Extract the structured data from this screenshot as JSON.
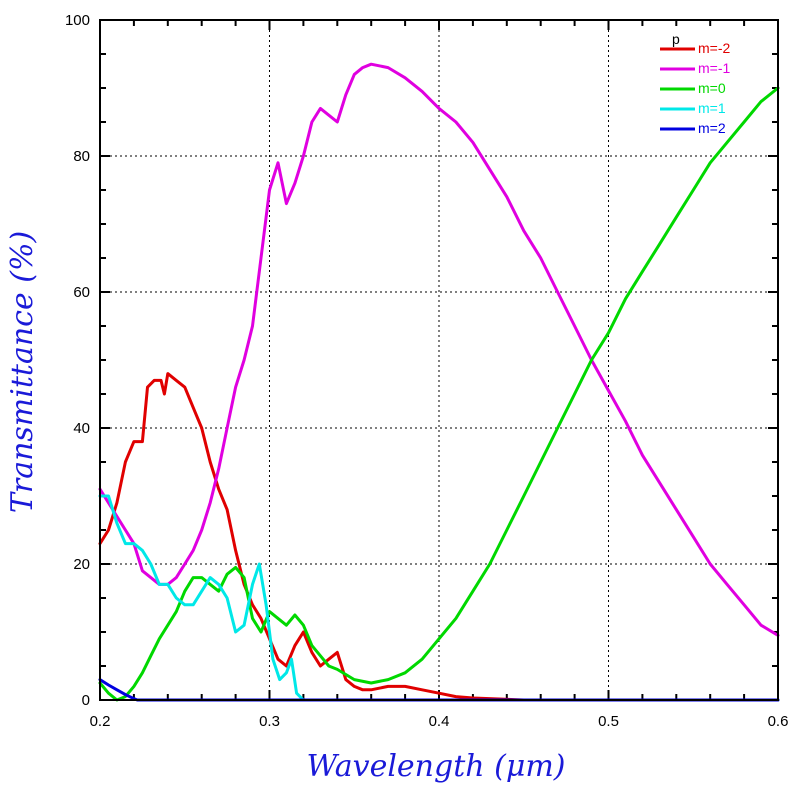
{
  "chart_data": {
    "type": "line",
    "xlabel": "Wavelength (μm)",
    "ylabel": "Transmittance (%)",
    "xlim": [
      0.2,
      0.6
    ],
    "ylim": [
      0,
      100
    ],
    "xticks": [
      0.2,
      0.3,
      0.4,
      0.5,
      0.6
    ],
    "xtick_labels": [
      "0.2",
      "0.3",
      "0.4",
      "0.5",
      "0.6"
    ],
    "yticks": [
      0,
      20,
      40,
      60,
      80,
      100
    ],
    "ytick_labels": [
      "0",
      "20",
      "40",
      "60",
      "80",
      "100"
    ],
    "grid": true,
    "legend_position": "top-right",
    "legend_heading": "p",
    "series": [
      {
        "name": "m=-2",
        "color": "#e00000",
        "x": [
          0.2,
          0.205,
          0.21,
          0.215,
          0.22,
          0.225,
          0.228,
          0.232,
          0.236,
          0.238,
          0.24,
          0.245,
          0.25,
          0.255,
          0.26,
          0.265,
          0.27,
          0.275,
          0.28,
          0.285,
          0.29,
          0.295,
          0.3,
          0.305,
          0.31,
          0.315,
          0.32,
          0.325,
          0.33,
          0.335,
          0.34,
          0.345,
          0.35,
          0.355,
          0.36,
          0.37,
          0.38,
          0.39,
          0.4,
          0.41,
          0.42,
          0.45,
          0.5,
          0.55,
          0.6
        ],
        "y": [
          23,
          25,
          29,
          35,
          38,
          38,
          46,
          47,
          47,
          45,
          48,
          47,
          46,
          43,
          40,
          35,
          31,
          28,
          22,
          17,
          14,
          12,
          9,
          6,
          5,
          8,
          10,
          7,
          5,
          6,
          7,
          3,
          2,
          1.5,
          1.5,
          2,
          2,
          1.5,
          1,
          0.5,
          0.3,
          0,
          0,
          0,
          0
        ]
      },
      {
        "name": "m=-1",
        "color": "#e000e0",
        "x": [
          0.2,
          0.205,
          0.21,
          0.215,
          0.22,
          0.225,
          0.23,
          0.235,
          0.24,
          0.245,
          0.25,
          0.255,
          0.26,
          0.265,
          0.27,
          0.275,
          0.28,
          0.285,
          0.29,
          0.295,
          0.3,
          0.305,
          0.31,
          0.315,
          0.32,
          0.325,
          0.33,
          0.335,
          0.34,
          0.345,
          0.35,
          0.355,
          0.36,
          0.37,
          0.38,
          0.39,
          0.4,
          0.41,
          0.42,
          0.43,
          0.44,
          0.45,
          0.46,
          0.47,
          0.48,
          0.49,
          0.5,
          0.51,
          0.52,
          0.53,
          0.54,
          0.55,
          0.56,
          0.57,
          0.58,
          0.59,
          0.6
        ],
        "y": [
          31,
          29,
          27,
          25,
          23,
          19,
          18,
          17,
          17,
          18,
          20,
          22,
          25,
          29,
          34,
          40,
          46,
          50,
          55,
          65,
          75,
          79,
          73,
          76,
          80,
          85,
          87,
          86,
          85,
          89,
          92,
          93,
          93.5,
          93,
          91.5,
          89.5,
          87,
          85,
          82,
          78,
          74,
          69,
          65,
          60,
          55,
          50,
          45.5,
          41,
          36,
          32,
          28,
          24,
          20,
          17,
          14,
          11,
          9.5
        ]
      },
      {
        "name": "m=0",
        "color": "#00d800",
        "x": [
          0.2,
          0.205,
          0.21,
          0.215,
          0.22,
          0.225,
          0.23,
          0.235,
          0.24,
          0.245,
          0.25,
          0.255,
          0.26,
          0.265,
          0.27,
          0.275,
          0.28,
          0.285,
          0.29,
          0.295,
          0.3,
          0.305,
          0.31,
          0.315,
          0.32,
          0.325,
          0.33,
          0.335,
          0.34,
          0.35,
          0.36,
          0.37,
          0.38,
          0.39,
          0.4,
          0.41,
          0.42,
          0.43,
          0.44,
          0.45,
          0.46,
          0.47,
          0.48,
          0.49,
          0.5,
          0.51,
          0.52,
          0.53,
          0.54,
          0.55,
          0.56,
          0.57,
          0.58,
          0.59,
          0.6
        ],
        "y": [
          2.5,
          1,
          0,
          0.5,
          2,
          4,
          6.5,
          9,
          11,
          13,
          16,
          18,
          18,
          17,
          16,
          18.5,
          19.5,
          18,
          12,
          10,
          13,
          12,
          11,
          12.5,
          11,
          8,
          6.5,
          5,
          4.5,
          3,
          2.5,
          3,
          4,
          6,
          9,
          12,
          16,
          20,
          25,
          30,
          35,
          40,
          45,
          50,
          54,
          59,
          63,
          67,
          71,
          75,
          79,
          82,
          85,
          88,
          90
        ]
      },
      {
        "name": "m=1",
        "color": "#00e8e8",
        "x": [
          0.2,
          0.205,
          0.21,
          0.215,
          0.22,
          0.225,
          0.23,
          0.235,
          0.24,
          0.245,
          0.25,
          0.255,
          0.26,
          0.265,
          0.27,
          0.275,
          0.28,
          0.285,
          0.29,
          0.294,
          0.298,
          0.302,
          0.306,
          0.31,
          0.313,
          0.316,
          0.32,
          0.33,
          0.34,
          0.36,
          0.4,
          0.45,
          0.5,
          0.55,
          0.6
        ],
        "y": [
          30,
          30,
          26,
          23,
          23,
          22,
          20,
          17,
          17,
          15,
          14,
          14,
          16,
          18,
          17,
          15,
          10,
          11,
          17,
          20,
          14,
          6,
          3,
          4,
          6,
          1,
          0,
          0,
          0,
          0,
          0,
          0,
          0,
          0,
          0
        ]
      },
      {
        "name": "m=2",
        "color": "#0000e0",
        "x": [
          0.2,
          0.205,
          0.21,
          0.215,
          0.22,
          0.222,
          0.24,
          0.3,
          0.4,
          0.5,
          0.6
        ],
        "y": [
          3,
          2.2,
          1.5,
          0.8,
          0.2,
          0,
          0,
          0,
          0,
          0,
          0
        ]
      }
    ]
  }
}
